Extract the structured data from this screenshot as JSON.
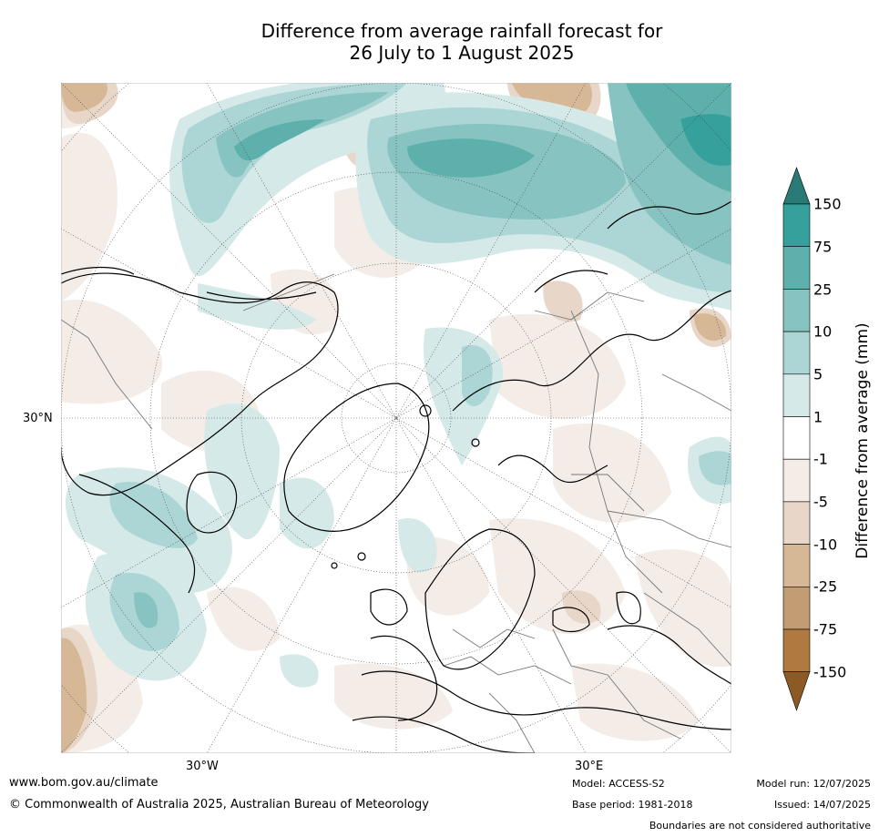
{
  "title": {
    "line1": "Difference from average rainfall forecast for",
    "line2": "26 July to 1 August 2025"
  },
  "map": {
    "projection": "north-polar-stereographic",
    "labels": {
      "lat_30n": "30°N",
      "lon_30w": "30°W",
      "lon_30e": "30°E"
    }
  },
  "legend": {
    "title": "Difference from average (mm)",
    "ticks": [
      "150",
      "75",
      "25",
      "10",
      "5",
      "1",
      "-1",
      "-5",
      "-10",
      "-25",
      "-75",
      "-150"
    ],
    "colors": {
      "gt150": "#2a7a77",
      "75_150": "#36a19c",
      "25_75": "#5eb0ad",
      "10_25": "#87c3c1",
      "5_10": "#acd6d5",
      "1_5": "#d5e9e9",
      "neutral": "#ffffff",
      "m1_m5": "#f4ece6",
      "m5_m10": "#e8d7c8",
      "m10_m25": "#d6b897",
      "m25_m75": "#c39c73",
      "m75_m150": "#b0793f",
      "lt_m150": "#8d5a26"
    }
  },
  "footer": {
    "website": "www.bom.gov.au/climate",
    "copyright": "© Commonwealth of Australia 2025, Australian Bureau of Meteorology",
    "model": "Model: ACCESS-S2",
    "base_period": "Base period: 1981-2018",
    "model_run": "Model run: 12/07/2025",
    "issued": "Issued: 14/07/2025",
    "disclaimer": "Boundaries are not considered authoritative"
  }
}
